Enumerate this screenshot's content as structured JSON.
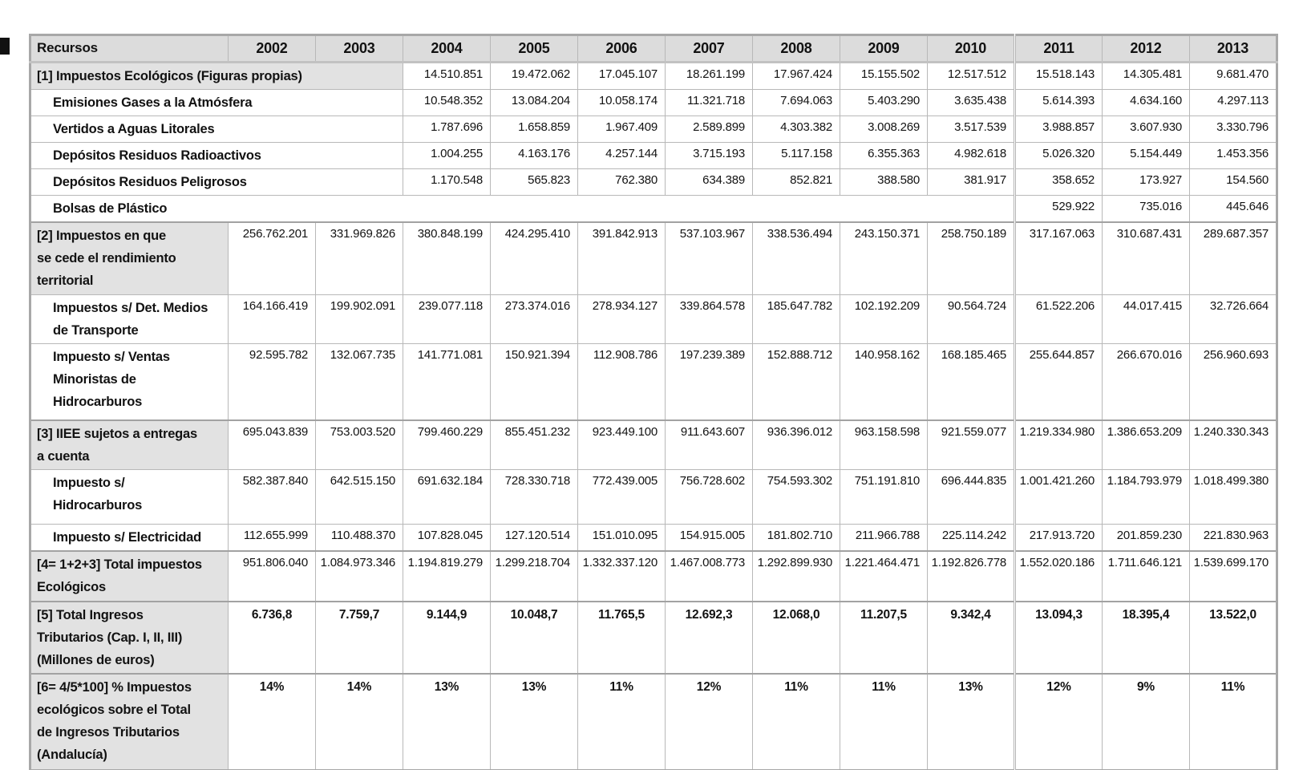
{
  "colors": {
    "header_bg": "#dcdcdc",
    "section_bg": "#e2e2e2",
    "grid": "#b8b8b8",
    "outer_border": "#a8a8a8",
    "text": "#121212"
  },
  "table": {
    "header": {
      "label": "Recursos",
      "years": [
        "2002",
        "2003",
        "2004",
        "2005",
        "2006",
        "2007",
        "2008",
        "2009",
        "2010",
        "2011",
        "2012",
        "2013"
      ]
    },
    "rows": [
      {
        "name": "row-1-impuestos-ecologicos",
        "label": "[1] Impuestos Ecológicos (Figuras propias)",
        "kind": "section",
        "label_span": 3,
        "values": [
          "14.510.851",
          "19.472.062",
          "17.045.107",
          "18.261.199",
          "17.967.424",
          "15.155.502",
          "12.517.512",
          "15.518.143",
          "14.305.481",
          "9.681.470"
        ]
      },
      {
        "name": "row-emisiones-gases",
        "label": "Emisiones Gases a la Atmósfera",
        "kind": "sub",
        "label_span": 3,
        "values": [
          "10.548.352",
          "13.084.204",
          "10.058.174",
          "11.321.718",
          "7.694.063",
          "5.403.290",
          "3.635.438",
          "5.614.393",
          "4.634.160",
          "4.297.113"
        ]
      },
      {
        "name": "row-vertidos-aguas",
        "label": "Vertidos a Aguas Litorales",
        "kind": "sub",
        "label_span": 3,
        "values": [
          "1.787.696",
          "1.658.859",
          "1.967.409",
          "2.589.899",
          "4.303.382",
          "3.008.269",
          "3.517.539",
          "3.988.857",
          "3.607.930",
          "3.330.796"
        ]
      },
      {
        "name": "row-depositos-radioactivos",
        "label": "Depósitos Residuos Radioactivos",
        "kind": "sub",
        "label_span": 3,
        "values": [
          "1.004.255",
          "4.163.176",
          "4.257.144",
          "3.715.193",
          "5.117.158",
          "6.355.363",
          "4.982.618",
          "5.026.320",
          "5.154.449",
          "1.453.356"
        ]
      },
      {
        "name": "row-depositos-peligrosos",
        "label": "Depósitos Residuos Peligrosos",
        "kind": "sub",
        "label_span": 3,
        "values": [
          "1.170.548",
          "565.823",
          "762.380",
          "634.389",
          "852.821",
          "388.580",
          "381.917",
          "358.652",
          "173.927",
          "154.560"
        ]
      },
      {
        "name": "row-bolsas-plastico",
        "label": "Bolsas de Plástico",
        "kind": "sub",
        "label_span": 10,
        "values": [
          "529.922",
          "735.016",
          "445.646"
        ]
      },
      {
        "name": "row-2-impuestos-cedidos",
        "label": "[2] Impuestos en que\nse cede el rendimiento\nterritorial",
        "kind": "section",
        "label_span": 1,
        "values": [
          "256.762.201",
          "331.969.826",
          "380.848.199",
          "424.295.410",
          "391.842.913",
          "537.103.967",
          "338.536.494",
          "243.150.371",
          "258.750.189",
          "317.167.063",
          "310.687.431",
          "289.687.357"
        ]
      },
      {
        "name": "row-det-medios-transporte",
        "label": "Impuestos s/ Det. Medios\nde Transporte",
        "kind": "sub",
        "label_span": 1,
        "values": [
          "164.166.419",
          "199.902.091",
          "239.077.118",
          "273.374.016",
          "278.934.127",
          "339.864.578",
          "185.647.782",
          "102.192.209",
          "90.564.724",
          "61.522.206",
          "44.017.415",
          "32.726.664"
        ]
      },
      {
        "name": "row-ventas-minoristas-hidrocarburos",
        "label": "Impuesto s/ Ventas\nMinoristas de\nHidrocarburos",
        "kind": "sub",
        "label_span": 1,
        "values": [
          "92.595.782",
          "132.067.735",
          "141.771.081",
          "150.921.394",
          "112.908.786",
          "197.239.389",
          "152.888.712",
          "140.958.162",
          "168.185.465",
          "255.644.857",
          "266.670.016",
          "256.960.693"
        ]
      },
      {
        "name": "row-3-iiee-entregas-cuenta",
        "label": "[3] IIEE sujetos a entregas\na cuenta",
        "kind": "section",
        "label_span": 1,
        "values": [
          "695.043.839",
          "753.003.520",
          "799.460.229",
          "855.451.232",
          "923.449.100",
          "911.643.607",
          "936.396.012",
          "963.158.598",
          "921.559.077",
          "1.219.334.980",
          "1.386.653.209",
          "1.240.330.343"
        ]
      },
      {
        "name": "row-impuesto-hidrocarburos",
        "label": "Impuesto s/\nHidrocarburos",
        "kind": "sub",
        "label_span": 1,
        "values": [
          "582.387.840",
          "642.515.150",
          "691.632.184",
          "728.330.718",
          "772.439.005",
          "756.728.602",
          "754.593.302",
          "751.191.810",
          "696.444.835",
          "1.001.421.260",
          "1.184.793.979",
          "1.018.499.380"
        ]
      },
      {
        "name": "row-impuesto-electricidad",
        "label": "Impuesto s/ Electricidad",
        "kind": "sub",
        "label_span": 1,
        "values": [
          "112.655.999",
          "110.488.370",
          "107.828.045",
          "127.120.514",
          "151.010.095",
          "154.915.005",
          "181.802.710",
          "211.966.788",
          "225.114.242",
          "217.913.720",
          "201.859.230",
          "221.830.963"
        ]
      },
      {
        "name": "row-4-total-impuestos-ecologicos",
        "label": "[4= 1+2+3] Total impuestos\nEcológicos",
        "kind": "section",
        "label_span": 1,
        "values": [
          "951.806.040",
          "1.084.973.346",
          "1.194.819.279",
          "1.299.218.704",
          "1.332.337.120",
          "1.467.008.773",
          "1.292.899.930",
          "1.221.464.471",
          "1.192.826.778",
          "1.552.020.186",
          "1.711.646.121",
          "1.539.699.170"
        ]
      },
      {
        "name": "row-5-total-ingresos-tributarios",
        "label": "[5] Total Ingresos\nTributarios (Cap. I, II, III)\n(Millones de euros)",
        "kind": "summary",
        "label_span": 1,
        "values": [
          "6.736,8",
          "7.759,7",
          "9.144,9",
          "10.048,7",
          "11.765,5",
          "12.692,3",
          "12.068,0",
          "11.207,5",
          "9.342,4",
          "13.094,3",
          "18.395,4",
          "13.522,0"
        ]
      },
      {
        "name": "row-6-pct-impuestos-ecologicos",
        "label": "[6= 4/5*100] % Impuestos\necológicos sobre el Total\nde Ingresos Tributarios\n(Andalucía)",
        "kind": "summary",
        "label_span": 1,
        "values": [
          "14%",
          "14%",
          "13%",
          "13%",
          "11%",
          "12%",
          "11%",
          "11%",
          "13%",
          "12%",
          "9%",
          "11%"
        ]
      }
    ]
  }
}
